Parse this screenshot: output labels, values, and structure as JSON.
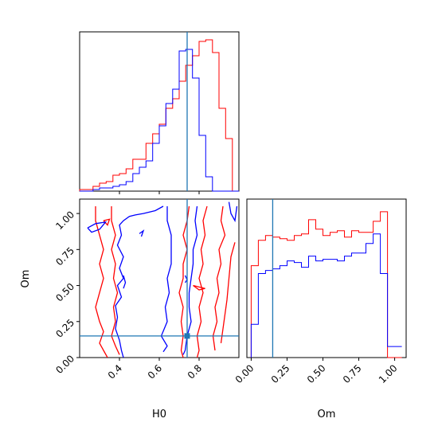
{
  "colors": {
    "series_a": "#ff0000",
    "series_b": "#0000ff",
    "truth": "#1f77b4",
    "frame": "#000000"
  },
  "chart_data": [
    {
      "type": "histogram",
      "panel": "H0 marginal",
      "xlim": [
        0.2,
        1.0
      ],
      "bin_edges": [
        0.2,
        0.233,
        0.267,
        0.3,
        0.333,
        0.367,
        0.4,
        0.433,
        0.467,
        0.5,
        0.533,
        0.567,
        0.6,
        0.633,
        0.667,
        0.7,
        0.733,
        0.767,
        0.8,
        0.833,
        0.867,
        0.9,
        0.933,
        0.967,
        1.0
      ],
      "series": [
        {
          "color": "red",
          "values": [
            0.01,
            0.01,
            0.03,
            0.05,
            0.06,
            0.1,
            0.11,
            0.14,
            0.2,
            0.2,
            0.3,
            0.36,
            0.42,
            0.52,
            0.58,
            0.69,
            0.79,
            0.85,
            0.94,
            0.95,
            0.87,
            0.52,
            0.33,
            0.0
          ]
        },
        {
          "color": "blue",
          "values": [
            0.0,
            0.0,
            0.01,
            0.02,
            0.02,
            0.03,
            0.04,
            0.06,
            0.11,
            0.15,
            0.19,
            0.3,
            0.41,
            0.55,
            0.64,
            0.88,
            0.89,
            0.71,
            0.35,
            0.09,
            0.0,
            0.0,
            0.0,
            0.0
          ]
        }
      ],
      "truth_x": 0.74,
      "x_ticks": [
        0.4,
        0.6,
        0.8
      ]
    },
    {
      "type": "contour",
      "panel": "H0 vs Om",
      "xlabel": "H0",
      "ylabel": "Om",
      "xlim": [
        0.2,
        1.0
      ],
      "ylim": [
        0.0,
        1.1
      ],
      "x_ticks": [
        0.4,
        0.6,
        0.8
      ],
      "x_tick_labels": [
        "0.4",
        "0.6",
        "0.8"
      ],
      "y_ticks": [
        0.0,
        0.25,
        0.5,
        0.75,
        1.0
      ],
      "y_tick_labels": [
        "0.00",
        "0.25",
        "0.50",
        "0.75",
        "1.00"
      ],
      "truth": [
        0.74,
        0.15
      ],
      "contours": [
        {
          "color": "red",
          "points": [
            [
              0.28,
              1.05
            ],
            [
              0.28,
              0.95
            ],
            [
              0.3,
              0.85
            ],
            [
              0.32,
              0.75
            ],
            [
              0.3,
              0.65
            ],
            [
              0.32,
              0.55
            ],
            [
              0.3,
              0.45
            ],
            [
              0.28,
              0.35
            ],
            [
              0.3,
              0.25
            ],
            [
              0.32,
              0.18
            ],
            [
              0.3,
              0.1
            ],
            [
              0.32,
              0.05
            ],
            [
              0.34,
              0.0
            ]
          ]
        },
        {
          "color": "red",
          "points": [
            [
              0.36,
              1.05
            ],
            [
              0.36,
              0.95
            ],
            [
              0.38,
              0.85
            ],
            [
              0.36,
              0.75
            ],
            [
              0.38,
              0.65
            ],
            [
              0.37,
              0.55
            ],
            [
              0.39,
              0.45
            ],
            [
              0.37,
              0.35
            ],
            [
              0.38,
              0.25
            ],
            [
              0.36,
              0.15
            ],
            [
              0.38,
              0.08
            ],
            [
              0.4,
              0.02
            ]
          ]
        },
        {
          "color": "red",
          "points": [
            [
              0.75,
              1.05
            ],
            [
              0.74,
              0.95
            ],
            [
              0.72,
              0.85
            ],
            [
              0.74,
              0.75
            ],
            [
              0.72,
              0.65
            ],
            [
              0.72,
              0.55
            ],
            [
              0.7,
              0.45
            ],
            [
              0.72,
              0.35
            ],
            [
              0.71,
              0.25
            ],
            [
              0.72,
              0.15
            ],
            [
              0.71,
              0.05
            ],
            [
              0.72,
              0.0
            ]
          ]
        },
        {
          "color": "red",
          "points": [
            [
              0.84,
              1.05
            ],
            [
              0.82,
              0.95
            ],
            [
              0.83,
              0.85
            ],
            [
              0.81,
              0.75
            ],
            [
              0.82,
              0.65
            ],
            [
              0.8,
              0.55
            ],
            [
              0.82,
              0.45
            ],
            [
              0.8,
              0.35
            ],
            [
              0.81,
              0.25
            ],
            [
              0.79,
              0.15
            ],
            [
              0.8,
              0.05
            ],
            [
              0.79,
              0.0
            ]
          ]
        },
        {
          "color": "red",
          "points": [
            [
              0.92,
              1.05
            ],
            [
              0.91,
              0.95
            ],
            [
              0.93,
              0.85
            ],
            [
              0.9,
              0.75
            ],
            [
              0.91,
              0.65
            ],
            [
              0.89,
              0.55
            ],
            [
              0.9,
              0.45
            ],
            [
              0.88,
              0.35
            ],
            [
              0.89,
              0.25
            ],
            [
              0.87,
              0.15
            ],
            [
              0.88,
              0.05
            ]
          ]
        },
        {
          "color": "red",
          "points": [
            [
              0.98,
              0.8
            ],
            [
              0.96,
              0.7
            ],
            [
              0.95,
              0.55
            ],
            [
              0.94,
              0.4
            ],
            [
              0.93,
              0.3
            ],
            [
              0.92,
              0.2
            ],
            [
              0.91,
              0.1
            ]
          ]
        },
        {
          "color": "red",
          "points": [
            [
              0.32,
              0.95
            ],
            [
              0.35,
              0.96
            ],
            [
              0.34,
              0.92
            ],
            [
              0.32,
              0.95
            ]
          ]
        },
        {
          "color": "red",
          "points": [
            [
              0.77,
              0.5
            ],
            [
              0.8,
              0.49
            ],
            [
              0.83,
              0.48
            ],
            [
              0.8,
              0.47
            ],
            [
              0.77,
              0.5
            ]
          ]
        },
        {
          "color": "blue",
          "points": [
            [
              0.62,
              1.05
            ],
            [
              0.58,
              1.02
            ],
            [
              0.52,
              1.0
            ],
            [
              0.48,
              0.99
            ],
            [
              0.45,
              0.98
            ],
            [
              0.42,
              0.95
            ],
            [
              0.4,
              0.92
            ],
            [
              0.41,
              0.85
            ],
            [
              0.39,
              0.78
            ],
            [
              0.42,
              0.7
            ],
            [
              0.4,
              0.62
            ],
            [
              0.42,
              0.55
            ],
            [
              0.39,
              0.5
            ],
            [
              0.41,
              0.42
            ],
            [
              0.38,
              0.36
            ],
            [
              0.39,
              0.28
            ],
            [
              0.38,
              0.2
            ],
            [
              0.4,
              0.12
            ],
            [
              0.41,
              0.05
            ],
            [
              0.42,
              0.0
            ]
          ]
        },
        {
          "color": "blue",
          "points": [
            [
              0.64,
              1.05
            ],
            [
              0.64,
              0.95
            ],
            [
              0.66,
              0.85
            ],
            [
              0.66,
              0.75
            ],
            [
              0.66,
              0.65
            ],
            [
              0.64,
              0.55
            ],
            [
              0.65,
              0.45
            ],
            [
              0.63,
              0.35
            ],
            [
              0.64,
              0.25
            ],
            [
              0.61,
              0.15
            ],
            [
              0.64,
              0.08
            ],
            [
              0.62,
              0.04
            ]
          ]
        },
        {
          "color": "blue",
          "points": [
            [
              0.79,
              1.05
            ],
            [
              0.78,
              0.95
            ],
            [
              0.79,
              0.85
            ],
            [
              0.77,
              0.75
            ],
            [
              0.77,
              0.65
            ],
            [
              0.76,
              0.55
            ],
            [
              0.75,
              0.45
            ],
            [
              0.75,
              0.35
            ],
            [
              0.76,
              0.25
            ],
            [
              0.74,
              0.15
            ],
            [
              0.73,
              0.05
            ],
            [
              0.72,
              0.02
            ]
          ]
        },
        {
          "color": "blue",
          "points": [
            [
              0.95,
              1.08
            ],
            [
              0.96,
              1.0
            ],
            [
              0.98,
              0.95
            ],
            [
              0.99,
              1.05
            ]
          ]
        },
        {
          "color": "blue",
          "points": [
            [
              0.24,
              0.9
            ],
            [
              0.28,
              0.93
            ],
            [
              0.33,
              0.94
            ],
            [
              0.3,
              0.89
            ],
            [
              0.26,
              0.87
            ],
            [
              0.24,
              0.9
            ]
          ]
        },
        {
          "color": "blue",
          "points": [
            [
              0.5,
              0.86
            ],
            [
              0.52,
              0.88
            ],
            [
              0.51,
              0.84
            ]
          ]
        },
        {
          "color": "blue",
          "points": [
            [
              0.42,
              0.57
            ],
            [
              0.43,
              0.52
            ],
            [
              0.42,
              0.48
            ]
          ]
        },
        {
          "color": "blue",
          "points": [
            [
              0.73,
              0.57
            ],
            [
              0.74,
              0.54
            ],
            [
              0.73,
              0.52
            ]
          ]
        }
      ]
    },
    {
      "type": "histogram",
      "panel": "Om marginal",
      "xlabel": "Om",
      "xlim": [
        -0.03,
        1.08
      ],
      "x_ticks": [
        0.0,
        0.25,
        0.5,
        0.75,
        1.0
      ],
      "x_tick_labels": [
        "0.00",
        "0.25",
        "0.50",
        "0.75",
        "1.00"
      ],
      "bin_edges": [
        0.0,
        0.05,
        0.1,
        0.15,
        0.2,
        0.25,
        0.3,
        0.35,
        0.4,
        0.45,
        0.5,
        0.55,
        0.6,
        0.65,
        0.7,
        0.75,
        0.8,
        0.85,
        0.9,
        0.95,
        1.0,
        1.05
      ],
      "series": [
        {
          "color": "red",
          "values": [
            0.58,
            0.74,
            0.77,
            0.76,
            0.75,
            0.74,
            0.77,
            0.78,
            0.87,
            0.81,
            0.77,
            0.79,
            0.8,
            0.76,
            0.8,
            0.79,
            0.79,
            0.86,
            0.92,
            0.0,
            0.0
          ]
        },
        {
          "color": "blue",
          "values": [
            0.21,
            0.53,
            0.55,
            0.56,
            0.58,
            0.61,
            0.6,
            0.57,
            0.64,
            0.61,
            0.62,
            0.62,
            0.61,
            0.64,
            0.66,
            0.66,
            0.72,
            0.78,
            0.53,
            0.07,
            0.07
          ]
        }
      ],
      "truth_x": 0.15
    }
  ]
}
